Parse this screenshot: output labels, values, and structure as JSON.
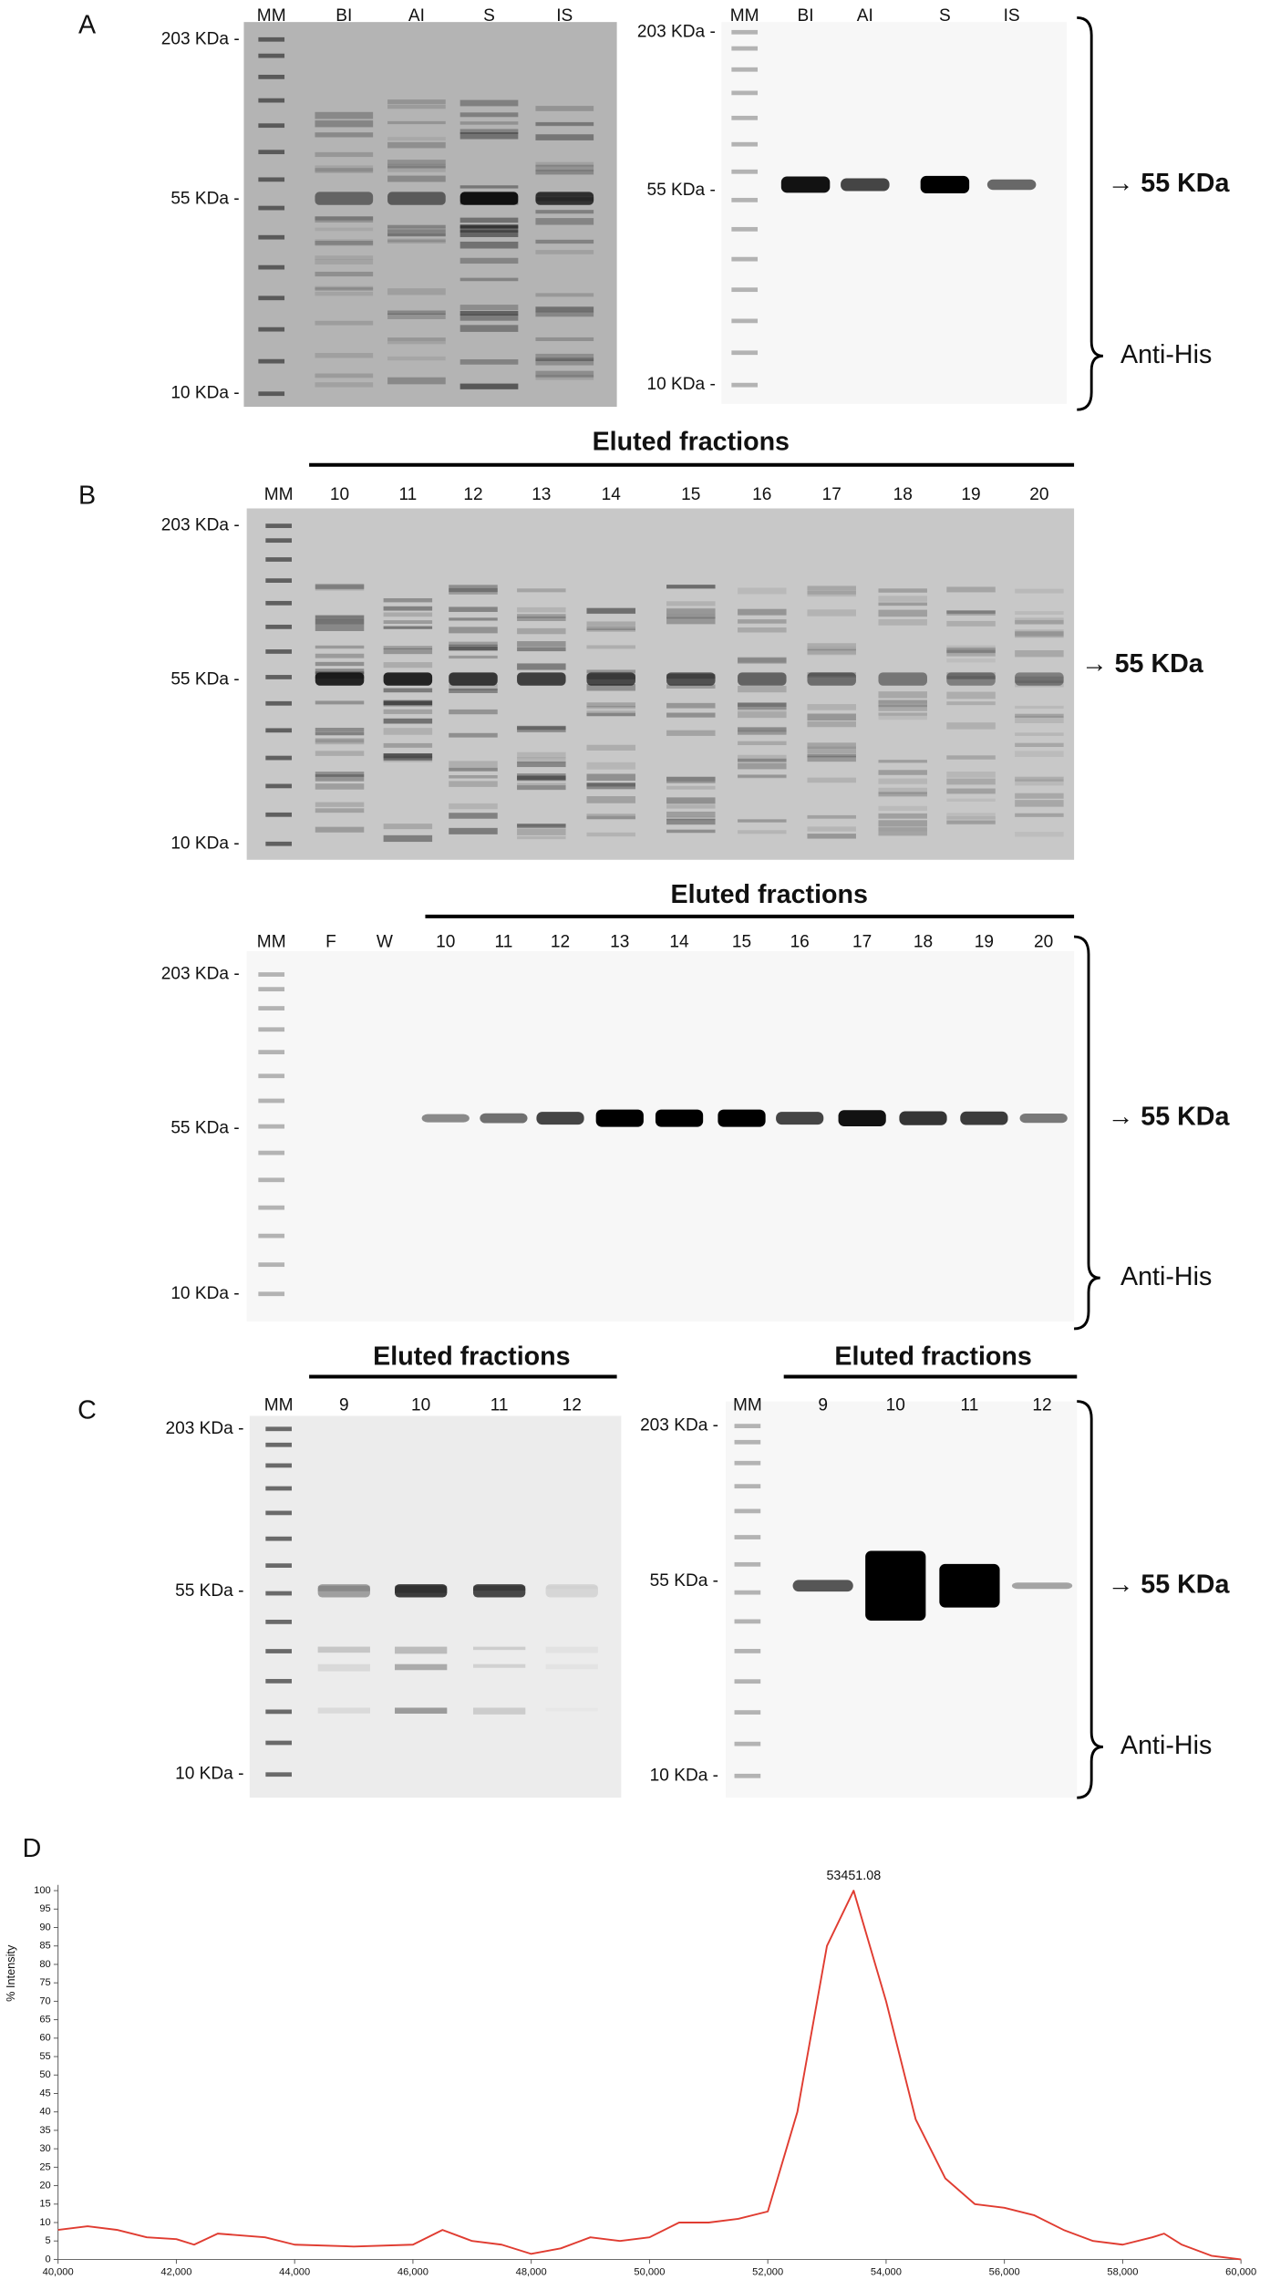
{
  "panels": [
    {
      "label": "A",
      "gels": [
        {
          "lanes": [
            "MM",
            "BI",
            "AI",
            "S",
            "IS"
          ],
          "markers": [
            "203 KDa -",
            "55 KDa -",
            "10 KDa -"
          ]
        },
        {
          "lanes": [
            "MM",
            "BI",
            "AI",
            "S",
            "IS"
          ],
          "markers": [
            "203 KDa -",
            "55 KDa -",
            "10 KDa -"
          ],
          "arrow": "→ 55 KDa",
          "antibody": "Anti-His"
        }
      ]
    },
    {
      "label": "B",
      "gels": [
        {
          "heading": "Eluted fractions",
          "lanes": [
            "MM",
            "10",
            "11",
            "12",
            "13",
            "14",
            "15",
            "16",
            "17",
            "18",
            "19",
            "20"
          ],
          "markers": [
            "203 KDa -",
            "55 KDa -",
            "10 KDa -"
          ],
          "arrow": "→ 55 KDa"
        },
        {
          "heading": "Eluted fractions",
          "lanes": [
            "MM",
            "F",
            "W",
            "10",
            "11",
            "12",
            "13",
            "14",
            "15",
            "16",
            "17",
            "18",
            "19",
            "20"
          ],
          "markers": [
            "203 KDa -",
            "55 KDa -",
            "10 KDa -"
          ],
          "arrow": "→ 55 KDa",
          "antibody": "Anti-His"
        }
      ]
    },
    {
      "label": "C",
      "gels": [
        {
          "heading": "Eluted fractions",
          "lanes": [
            "MM",
            "9",
            "10",
            "11",
            "12"
          ],
          "markers": [
            "203 KDa -",
            "55 KDa -",
            "10 KDa -"
          ]
        },
        {
          "heading": "Eluted fractions",
          "lanes": [
            "MM",
            "9",
            "10",
            "11",
            "12"
          ],
          "markers": [
            "203 KDa -",
            "55 KDa -",
            "10 KDa -"
          ],
          "arrow": "→ 55 KDa",
          "antibody": "Anti-His"
        }
      ]
    }
  ],
  "chart_data": {
    "type": "line",
    "panel_label": "D",
    "ylabel": "% Intensity",
    "x": [
      40000,
      40500,
      41000,
      41500,
      42000,
      42300,
      42700,
      43500,
      44000,
      45000,
      46000,
      46500,
      47000,
      47500,
      48000,
      48500,
      49000,
      49500,
      50000,
      50500,
      51000,
      51500,
      52000,
      52500,
      53000,
      53451.08,
      54000,
      54500,
      55000,
      55500,
      56000,
      56500,
      57000,
      57500,
      58000,
      58500,
      58700,
      59000,
      59500,
      60000
    ],
    "values": [
      8,
      9,
      8,
      6,
      5.5,
      4,
      7,
      6,
      4,
      3.5,
      4,
      8,
      5,
      4,
      1.5,
      3,
      6,
      5,
      6,
      10,
      10,
      11,
      13,
      40,
      85,
      100,
      70,
      38,
      22,
      15,
      14,
      12,
      8,
      5,
      4,
      6,
      7,
      4,
      1,
      0
    ],
    "color": "#e03c31",
    "annotations": [
      {
        "x": 53451.08
      }
    ],
    "xlim": [
      40000,
      60000
    ],
    "ylim": [
      0,
      100
    ],
    "xticks": [
      {
        "value": 40000,
        "label": "40,000"
      },
      {
        "value": 42000,
        "label": "42,000"
      },
      {
        "value": 44000,
        "label": "44,000"
      },
      {
        "value": 46000,
        "label": "46,000"
      },
      {
        "value": 48000,
        "label": "48,000"
      },
      {
        "value": 50000,
        "label": "50,000"
      },
      {
        "value": 52000,
        "label": "52,000"
      },
      {
        "value": 54000,
        "label": "54,000"
      },
      {
        "value": 56000,
        "label": "56,000"
      },
      {
        "value": 58000,
        "label": "58,000"
      },
      {
        "value": 60000,
        "label": "60,000"
      }
    ],
    "yticks": [
      0,
      5,
      10,
      15,
      20,
      25,
      30,
      35,
      40,
      45,
      50,
      55,
      60,
      65,
      70,
      75,
      80,
      85,
      90,
      95,
      100
    ]
  }
}
